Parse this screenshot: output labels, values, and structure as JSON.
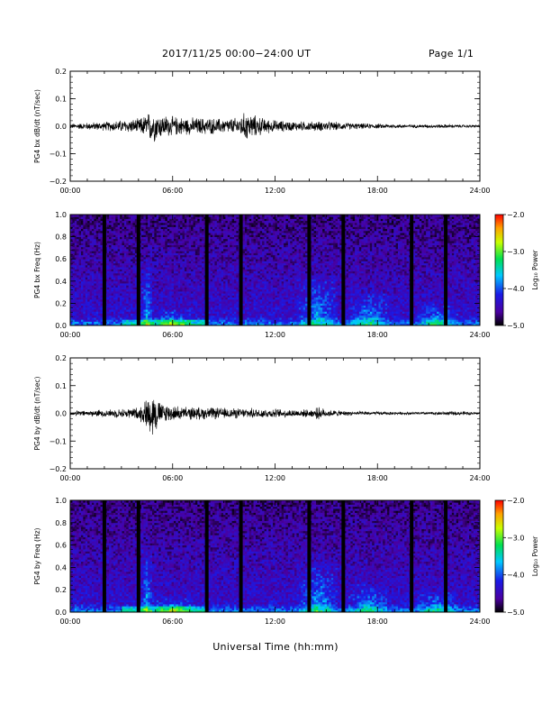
{
  "header": {
    "title": "2017/11/25  00:00−24:00 UT",
    "page": "Page 1/1"
  },
  "x_axis_title": "Universal Time (hh:mm)",
  "chart_data": [
    {
      "type": "line",
      "ylabel": "PG4 bx dB/dt (nT/sec)",
      "xlim": [
        0,
        24
      ],
      "ylim": [
        -0.2,
        0.2
      ],
      "x_ticks": [
        "00:00",
        "06:00",
        "12:00",
        "18:00",
        "24:00"
      ],
      "y_ticks": [
        "0.2",
        "0.1",
        "0.0",
        "−0.1",
        "−0.2"
      ],
      "grid": false,
      "activity_envelope": {
        "x": [
          0,
          1,
          2,
          3,
          4,
          4.5,
          4.8,
          5.2,
          6,
          7,
          8,
          9,
          9.8,
          10.3,
          10.8,
          11.5,
          12,
          13,
          14,
          15,
          16,
          17,
          18,
          19,
          20,
          21,
          22,
          23,
          24
        ],
        "amplitude": [
          0.01,
          0.015,
          0.018,
          0.025,
          0.03,
          0.05,
          0.07,
          0.05,
          0.04,
          0.035,
          0.035,
          0.03,
          0.035,
          0.06,
          0.045,
          0.03,
          0.025,
          0.02,
          0.02,
          0.02,
          0.015,
          0.012,
          0.01,
          0.008,
          0.007,
          0.007,
          0.008,
          0.006,
          0.005
        ]
      }
    },
    {
      "type": "heatmap",
      "ylabel": "PG4 bx Freq (Hz)",
      "xlim": [
        0,
        24
      ],
      "ylim": [
        0.0,
        1.0
      ],
      "x_ticks": [
        "00:00",
        "06:00",
        "12:00",
        "18:00",
        "24:00"
      ],
      "y_ticks": [
        "1.0",
        "0.8",
        "0.6",
        "0.4",
        "0.2",
        "0.0"
      ],
      "colorbar": {
        "label": "Log₁₀ Power",
        "range": [
          -5.0,
          -2.0
        ],
        "ticks": [
          "−2.0",
          "−3.0",
          "−4.0",
          "−5.0"
        ]
      },
      "data_gaps_hours": [
        2,
        4,
        8,
        10,
        14,
        16,
        20,
        22
      ],
      "enhancements": [
        {
          "t": 4.5,
          "f_max": 0.6
        },
        {
          "t": 6.0,
          "f_max": 0.15
        },
        {
          "t": 14.5,
          "f_max": 0.45
        },
        {
          "t": 17.5,
          "f_max": 0.3
        },
        {
          "t": 21.5,
          "f_max": 0.2
        }
      ]
    },
    {
      "type": "line",
      "ylabel": "PG4 by dB/dt (nT/sec)",
      "xlim": [
        0,
        24
      ],
      "ylim": [
        -0.2,
        0.2
      ],
      "x_ticks": [
        "00:00",
        "06:00",
        "12:00",
        "18:00",
        "24:00"
      ],
      "y_ticks": [
        "0.2",
        "0.1",
        "0.0",
        "−0.1",
        "−0.2"
      ],
      "grid": false,
      "activity_envelope": {
        "x": [
          0,
          1,
          2,
          3,
          4,
          4.5,
          4.8,
          5.2,
          6,
          7,
          8,
          9,
          10,
          11,
          12,
          13,
          14,
          14.6,
          15,
          16,
          17,
          18,
          19,
          20,
          21,
          22,
          23,
          24
        ],
        "amplitude": [
          0.01,
          0.012,
          0.015,
          0.018,
          0.025,
          0.06,
          0.1,
          0.05,
          0.03,
          0.025,
          0.025,
          0.022,
          0.02,
          0.02,
          0.018,
          0.016,
          0.015,
          0.025,
          0.015,
          0.01,
          0.008,
          0.007,
          0.006,
          0.006,
          0.006,
          0.008,
          0.008,
          0.005
        ]
      }
    },
    {
      "type": "heatmap",
      "ylabel": "PG4 by Freq (Hz)",
      "xlim": [
        0,
        24
      ],
      "ylim": [
        0.0,
        1.0
      ],
      "x_ticks": [
        "00:00",
        "06:00",
        "12:00",
        "18:00",
        "24:00"
      ],
      "y_ticks": [
        "1.0",
        "0.8",
        "0.6",
        "0.4",
        "0.2",
        "0.0"
      ],
      "colorbar": {
        "label": "Log₁₀ Power",
        "range": [
          -5.0,
          -2.0
        ],
        "ticks": [
          "−2.0",
          "−3.0",
          "−4.0",
          "−5.0"
        ]
      },
      "data_gaps_hours": [
        2,
        4,
        8,
        10,
        14,
        16,
        20,
        22
      ],
      "enhancements": [
        {
          "t": 4.5,
          "f_max": 0.6
        },
        {
          "t": 6.0,
          "f_max": 0.12
        },
        {
          "t": 14.5,
          "f_max": 0.45
        },
        {
          "t": 17.5,
          "f_max": 0.25
        },
        {
          "t": 21.5,
          "f_max": 0.18
        }
      ]
    }
  ]
}
